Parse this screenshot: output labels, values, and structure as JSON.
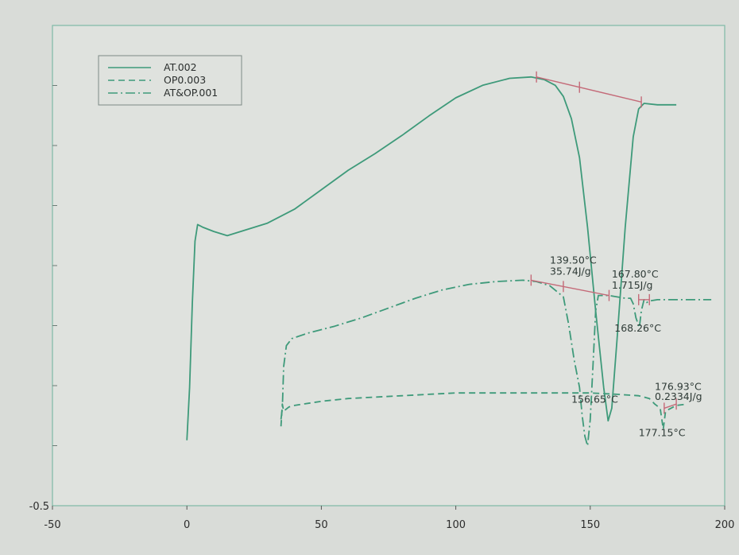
{
  "chart_data": {
    "type": "line",
    "title": "",
    "xlabel": "",
    "ylabel": "",
    "xlim": [
      -50,
      200
    ],
    "x_ticks": [
      "-50",
      "0",
      "50",
      "100",
      "150",
      "200"
    ],
    "y_tick_labels": [
      "-0.5"
    ],
    "grid": false,
    "legend_position": "top-left",
    "colors": {
      "curve": "#3e9a7a",
      "baseline": "#c46a78",
      "frame": "#7fb9a6",
      "background": "#d9dcd8"
    },
    "series": [
      {
        "name": "AT.002",
        "style": "solid",
        "points": [
          [
            0,
            -0.03
          ],
          [
            1,
            0.35
          ],
          [
            2,
            0.95
          ],
          [
            3,
            1.4
          ],
          [
            4,
            1.52
          ],
          [
            6,
            1.5
          ],
          [
            10,
            1.47
          ],
          [
            15,
            1.44
          ],
          [
            20,
            1.47
          ],
          [
            25,
            1.5
          ],
          [
            30,
            1.53
          ],
          [
            40,
            1.63
          ],
          [
            50,
            1.77
          ],
          [
            60,
            1.91
          ],
          [
            70,
            2.03
          ],
          [
            80,
            2.16
          ],
          [
            90,
            2.3
          ],
          [
            100,
            2.43
          ],
          [
            110,
            2.52
          ],
          [
            120,
            2.57
          ],
          [
            128,
            2.58
          ],
          [
            133,
            2.56
          ],
          [
            137,
            2.52
          ],
          [
            140,
            2.44
          ],
          [
            143,
            2.28
          ],
          [
            146,
            2.0
          ],
          [
            149,
            1.5
          ],
          [
            152,
            0.9
          ],
          [
            155,
            0.35
          ],
          [
            156.65,
            0.11
          ],
          [
            158,
            0.2
          ],
          [
            160,
            0.7
          ],
          [
            163,
            1.5
          ],
          [
            166,
            2.15
          ],
          [
            168,
            2.35
          ],
          [
            170,
            2.39
          ],
          [
            175,
            2.38
          ],
          [
            180,
            2.38
          ],
          [
            182,
            2.38
          ]
        ]
      },
      {
        "name": "OP0.003",
        "style": "dashed",
        "points": [
          [
            35,
            0.07
          ],
          [
            35.5,
            0.23
          ],
          [
            36,
            0.18
          ],
          [
            38,
            0.21
          ],
          [
            40,
            0.22
          ],
          [
            50,
            0.25
          ],
          [
            60,
            0.27
          ],
          [
            70,
            0.28
          ],
          [
            80,
            0.29
          ],
          [
            90,
            0.3
          ],
          [
            100,
            0.31
          ],
          [
            110,
            0.31
          ],
          [
            120,
            0.31
          ],
          [
            130,
            0.31
          ],
          [
            140,
            0.31
          ],
          [
            150,
            0.31
          ],
          [
            160,
            0.3
          ],
          [
            168,
            0.29
          ],
          [
            172,
            0.27
          ],
          [
            174,
            0.23
          ],
          [
            176,
            0.2
          ],
          [
            177.15,
            0.05
          ],
          [
            178,
            0.18
          ],
          [
            182,
            0.22
          ],
          [
            186,
            0.23
          ]
        ]
      },
      {
        "name": "AT&OP.001",
        "style": "dash-dot",
        "points": [
          [
            35,
            0.12
          ],
          [
            35.5,
            0.2
          ],
          [
            36,
            0.5
          ],
          [
            37,
            0.65
          ],
          [
            39,
            0.7
          ],
          [
            45,
            0.74
          ],
          [
            55,
            0.79
          ],
          [
            65,
            0.85
          ],
          [
            75,
            0.92
          ],
          [
            85,
            0.99
          ],
          [
            95,
            1.05
          ],
          [
            105,
            1.09
          ],
          [
            115,
            1.11
          ],
          [
            125,
            1.12
          ],
          [
            130,
            1.11
          ],
          [
            135,
            1.08
          ],
          [
            140,
            1.0
          ],
          [
            142,
            0.8
          ],
          [
            144,
            0.55
          ],
          [
            146,
            0.35
          ],
          [
            147,
            0.15
          ],
          [
            148,
            0.0
          ],
          [
            149,
            -0.07
          ],
          [
            150,
            0.12
          ],
          [
            151,
            0.5
          ],
          [
            152,
            0.9
          ],
          [
            153,
            1.01
          ],
          [
            157,
            1.01
          ],
          [
            160,
            1.0
          ],
          [
            163,
            0.99
          ],
          [
            165,
            0.99
          ],
          [
            166,
            0.95
          ],
          [
            167,
            0.85
          ],
          [
            168.26,
            0.78
          ],
          [
            169,
            0.9
          ],
          [
            170,
            0.98
          ],
          [
            171,
            0.96
          ],
          [
            172,
            0.97
          ],
          [
            175,
            0.98
          ],
          [
            180,
            0.98
          ],
          [
            195,
            0.98
          ]
        ]
      }
    ],
    "baselines": [
      {
        "from": [
          130,
          2.58
        ],
        "to": [
          169,
          2.4
        ],
        "ticks_x": [
          130,
          146,
          169
        ]
      },
      {
        "from": [
          128,
          1.12
        ],
        "to": [
          157,
          1.01
        ],
        "ticks_x": [
          128,
          140,
          157
        ]
      },
      {
        "from": [
          168,
          0.98
        ],
        "to": [
          172,
          0.98
        ],
        "ticks_x": [
          168,
          172
        ]
      },
      {
        "from": [
          177.5,
          0.2
        ],
        "to": [
          182,
          0.23
        ],
        "ticks_x": [
          177.5,
          182
        ]
      }
    ],
    "annotations": [
      {
        "id": "a1",
        "text": "139.50°C",
        "at": [
          135,
          1.24
        ]
      },
      {
        "id": "a2",
        "text": "35.74J/g",
        "at": [
          135,
          1.16
        ]
      },
      {
        "id": "a3",
        "text": "167.80°C",
        "at": [
          158,
          1.14
        ]
      },
      {
        "id": "a4",
        "text": "1.715J/g",
        "at": [
          158,
          1.06
        ]
      },
      {
        "id": "a5",
        "text": "168.26°C",
        "at": [
          159,
          0.75
        ]
      },
      {
        "id": "a6",
        "text": "156.65°C",
        "at": [
          143,
          0.24
        ]
      },
      {
        "id": "a7",
        "text": "176.93°C",
        "at": [
          174,
          0.33
        ]
      },
      {
        "id": "a8",
        "text": "0.2334J/g",
        "at": [
          174,
          0.26
        ]
      },
      {
        "id": "a9",
        "text": "177.15°C",
        "at": [
          168,
          0.0
        ]
      }
    ]
  }
}
